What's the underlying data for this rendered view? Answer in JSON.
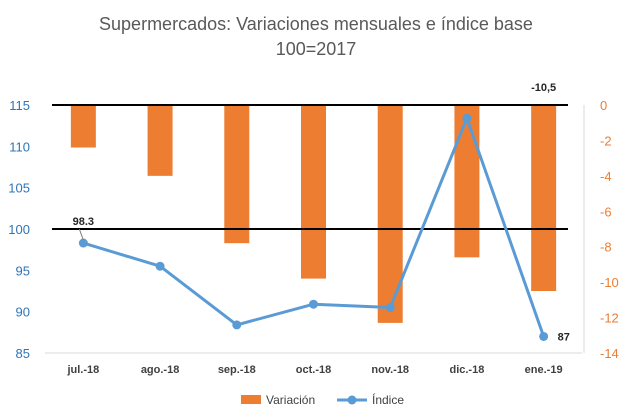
{
  "chart_data": {
    "type": "bar+line",
    "title_line1": "Supermercados: Variaciones mensuales e índice base",
    "title_line2": "100=2017",
    "categories": [
      "jul.-18",
      "ago.-18",
      "sep.-18",
      "oct.-18",
      "nov.-18",
      "dic.-18",
      "ene.-19"
    ],
    "series": [
      {
        "name": "Variación",
        "kind": "bar",
        "axis": "right",
        "color": "#ED7D31",
        "values": [
          -2.4,
          -4.0,
          -7.8,
          -9.8,
          -12.3,
          -8.6,
          -10.5
        ]
      },
      {
        "name": "Índice",
        "kind": "line",
        "axis": "left",
        "color": "#5B9BD5",
        "values": [
          98.3,
          95.5,
          88.4,
          90.9,
          90.5,
          113.4,
          87.0
        ]
      }
    ],
    "left_axis": {
      "min": 85,
      "max": 115,
      "ticks": [
        "85",
        "90",
        "95",
        "100",
        "105",
        "110",
        "115"
      ]
    },
    "right_axis": {
      "min": -14,
      "max": 0,
      "ticks": [
        "-14",
        "-12",
        "-10",
        "-8",
        "-6",
        "-4",
        "-2",
        "0"
      ]
    },
    "reference_lines_left": [
      115,
      100
    ],
    "data_labels": [
      {
        "series": 1,
        "index": 0,
        "text": "98.3"
      },
      {
        "series": 1,
        "index": 6,
        "text": "87"
      },
      {
        "series": 0,
        "index": 6,
        "text": "-10,5"
      }
    ],
    "legend": {
      "position": "bottom",
      "items": [
        "Variación",
        "Índice"
      ]
    },
    "grid": false
  }
}
